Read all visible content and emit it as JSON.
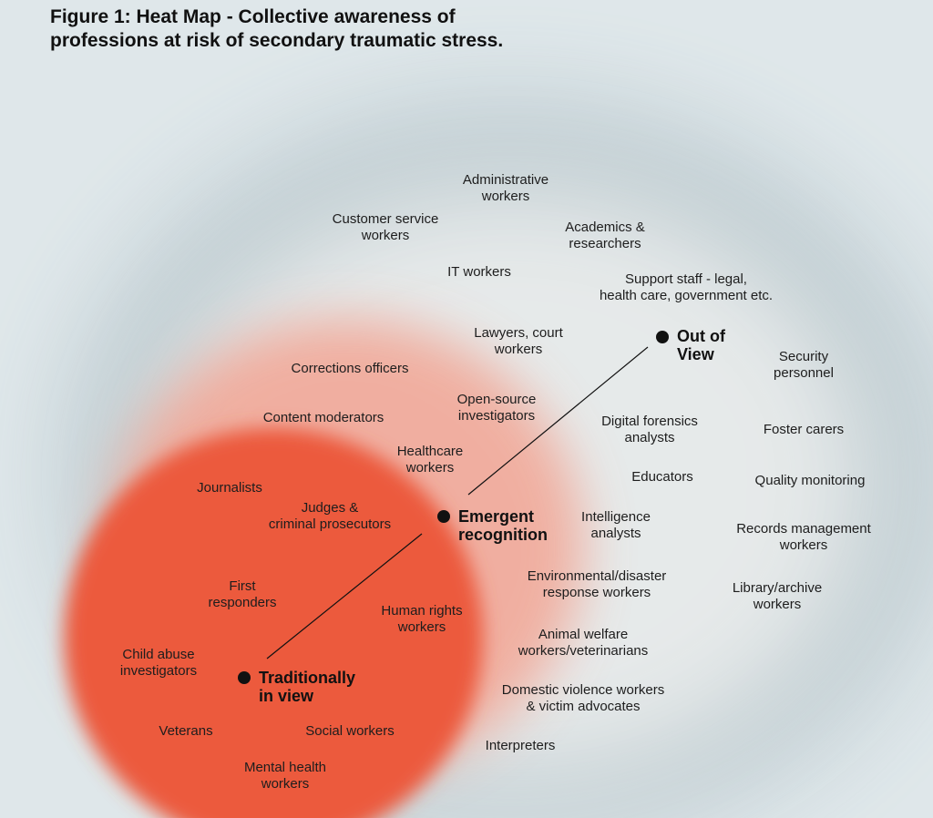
{
  "title": {
    "line1": "Figure 1: Heat Map - Collective awareness of",
    "line2": "professions at risk of secondary traumatic stress."
  },
  "colors": {
    "background": "#dfe7ea",
    "outer_halo": "#6f8c97",
    "heat_red": "#ec5a3c",
    "heat_mid": "#f3a08e",
    "ink": "#111111"
  },
  "markers": {
    "out_of_view": [
      "Out of",
      "View"
    ],
    "emergent": [
      "Emergent",
      "recognition"
    ],
    "traditional": [
      "Traditionally",
      "in view"
    ]
  },
  "labels": {
    "administrative": [
      "Administrative",
      "workers"
    ],
    "customer_service": [
      "Customer service",
      "workers"
    ],
    "academics": [
      "Academics &",
      "researchers"
    ],
    "it": [
      "IT workers"
    ],
    "support_staff": [
      "Support staff - legal,",
      "health care, government etc."
    ],
    "lawyers": [
      "Lawyers, court",
      "workers"
    ],
    "security": [
      "Security",
      "personnel"
    ],
    "corrections": [
      "Corrections officers"
    ],
    "osint": [
      "Open-source",
      "investigators"
    ],
    "content_moderators": [
      "Content moderators"
    ],
    "digital_forensics": [
      "Digital forensics",
      "analysts"
    ],
    "foster": [
      "Foster carers"
    ],
    "healthcare": [
      "Healthcare",
      "workers"
    ],
    "educators": [
      "Educators"
    ],
    "quality": [
      "Quality monitoring"
    ],
    "journalists": [
      "Journalists"
    ],
    "judges": [
      "Judges &",
      "criminal prosecutors"
    ],
    "intelligence": [
      "Intelligence",
      "analysts"
    ],
    "records": [
      "Records management",
      "workers"
    ],
    "environmental": [
      "Environmental/disaster",
      "response workers"
    ],
    "library": [
      "Library/archive",
      "workers"
    ],
    "first_responders": [
      "First",
      "responders"
    ],
    "human_rights": [
      "Human rights",
      "workers"
    ],
    "animal_welfare": [
      "Animal welfare",
      "workers/veterinarians"
    ],
    "child_abuse": [
      "Child abuse",
      "investigators"
    ],
    "domestic_violence": [
      "Domestic violence workers",
      "& victim advocates"
    ],
    "veterans": [
      "Veterans"
    ],
    "social_workers": [
      "Social workers"
    ],
    "interpreters": [
      "Interpreters"
    ],
    "mental_health": [
      "Mental health",
      "workers"
    ]
  }
}
